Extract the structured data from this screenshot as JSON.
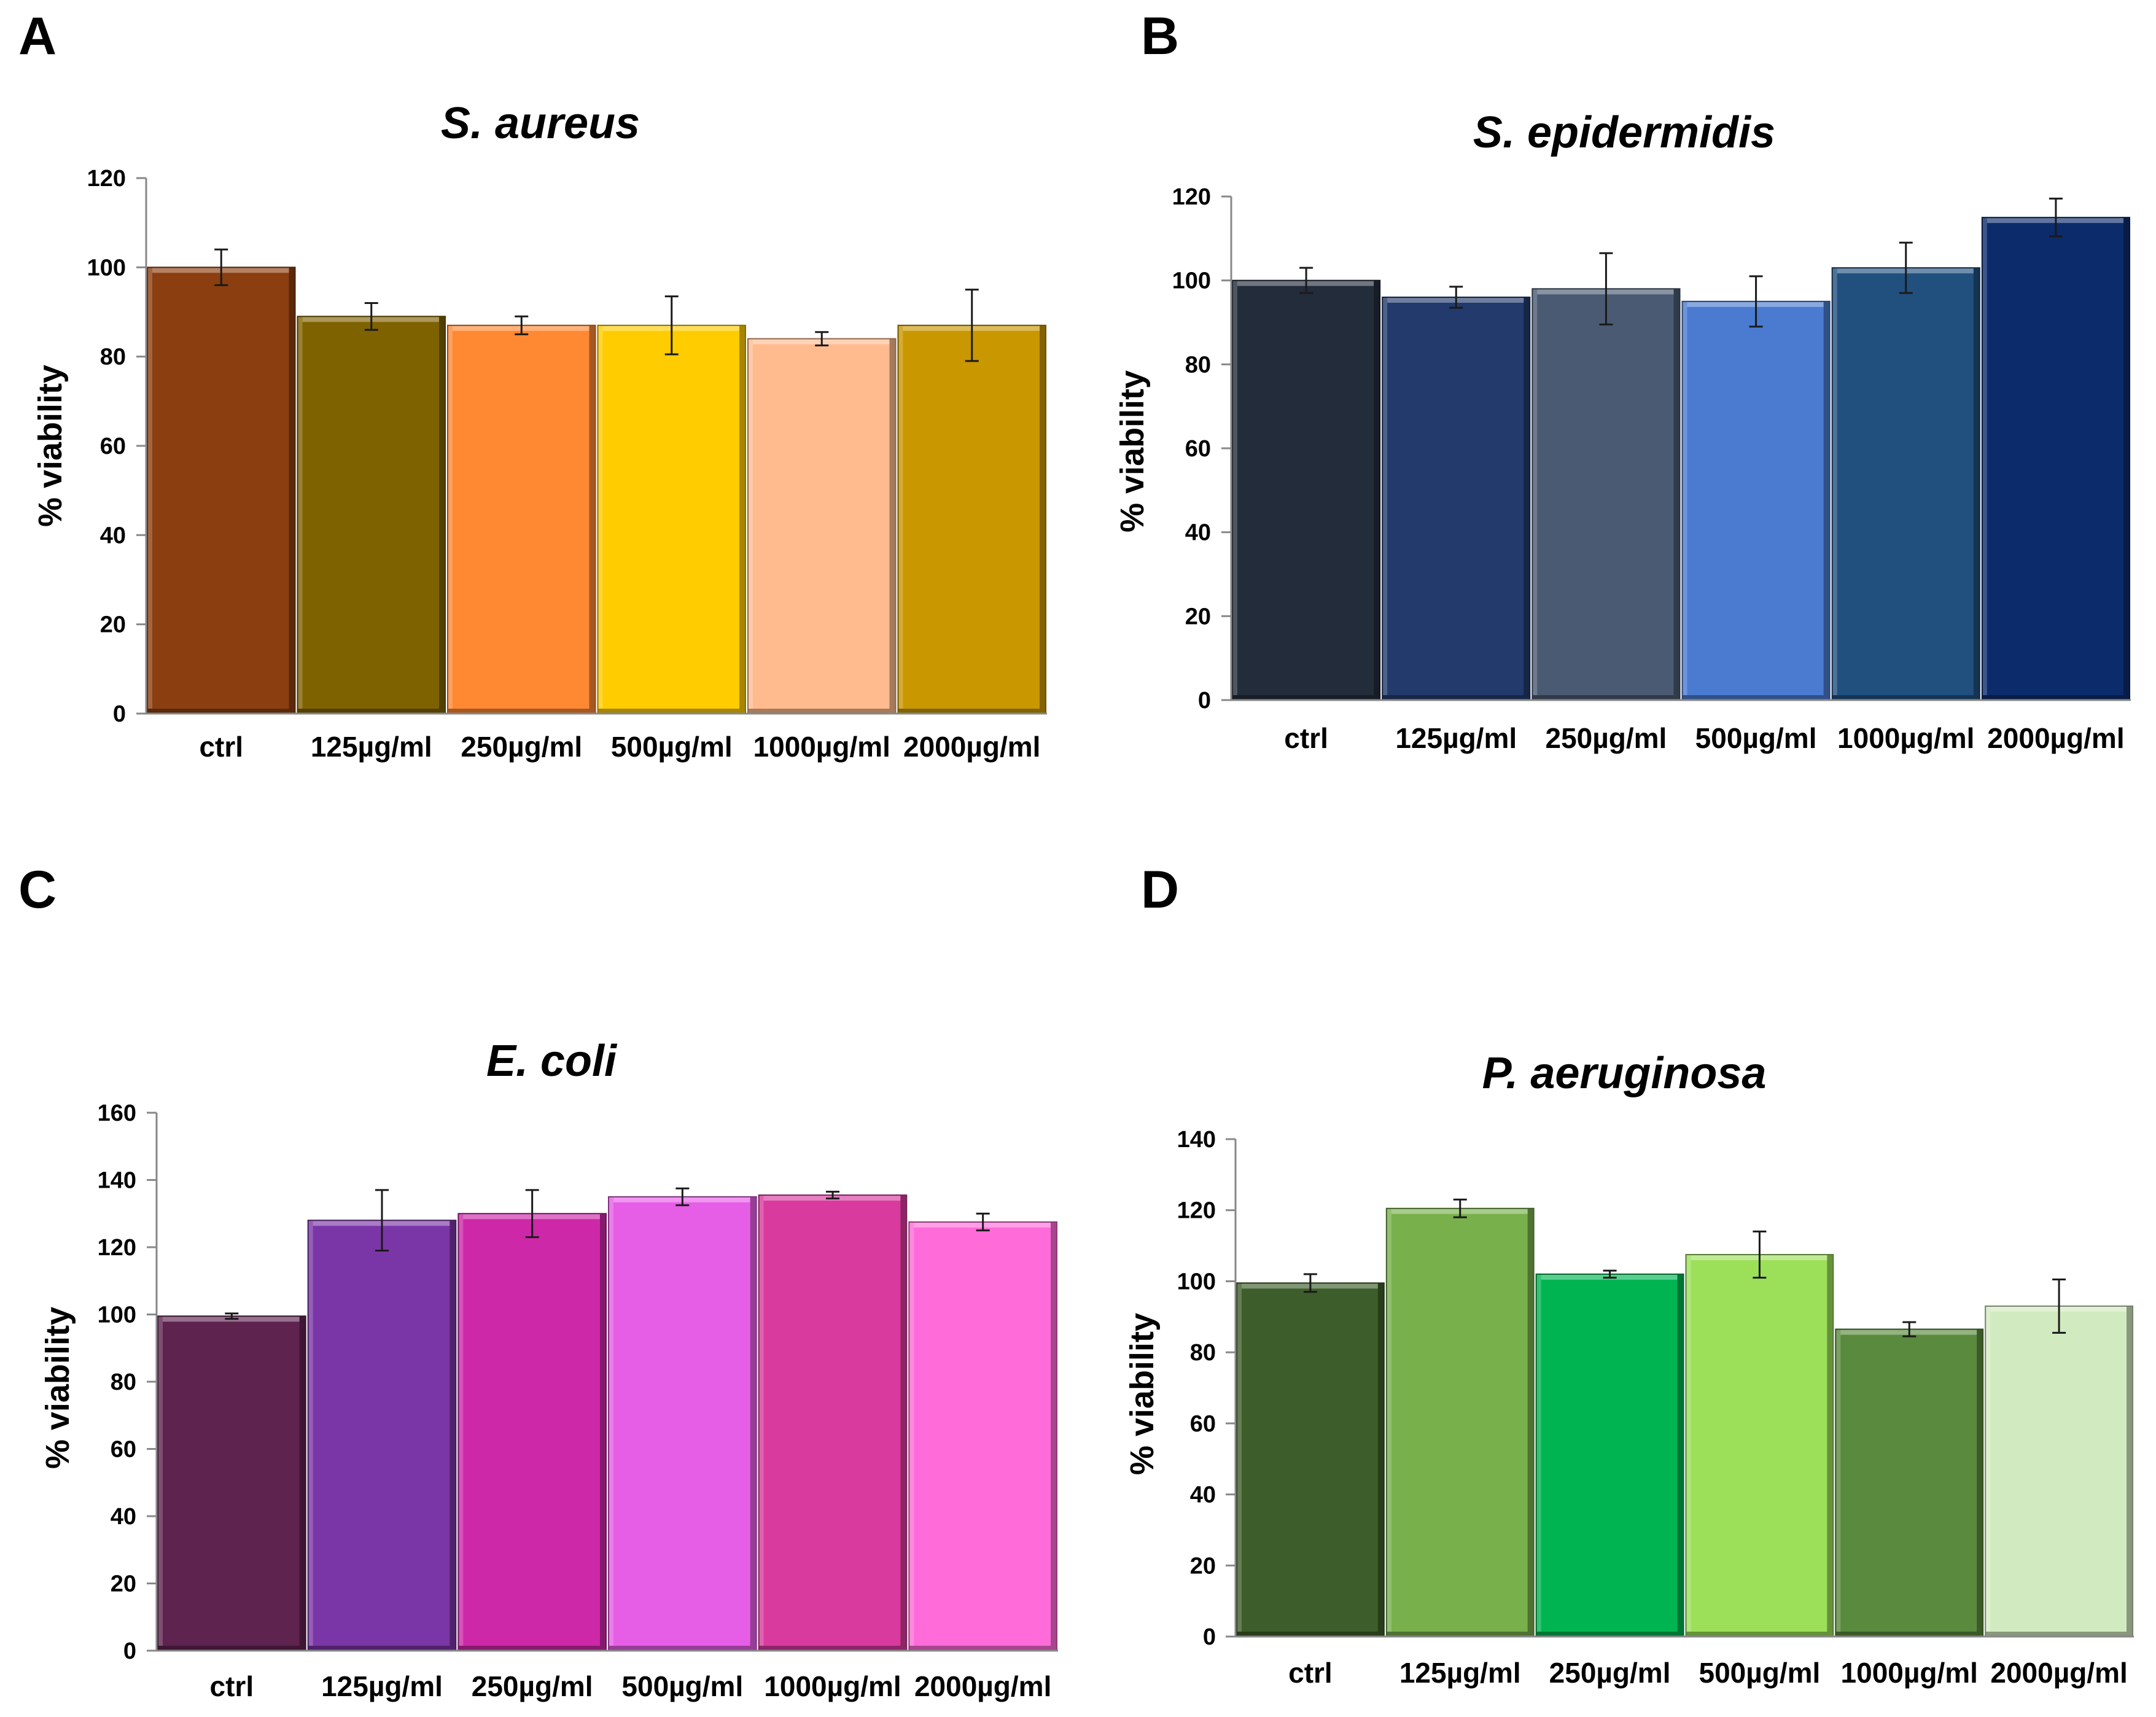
{
  "chart_data": [
    {
      "panel": "A",
      "type": "bar",
      "title": "S. aureus",
      "xlabel": "",
      "ylabel": "% viability",
      "ylim": [
        0,
        120
      ],
      "yticks": [
        0,
        20,
        40,
        60,
        80,
        100,
        120
      ],
      "categories": [
        "ctrl",
        "125µg/ml",
        "250µg/ml",
        "500µg/ml",
        "1000µg/ml",
        "2000µg/ml"
      ],
      "values": [
        100,
        89,
        87,
        87,
        84,
        87
      ],
      "errors": [
        4,
        3,
        2,
        6.5,
        1.5,
        8
      ],
      "colors": [
        "#8b3e0f",
        "#7f6200",
        "#ff8833",
        "#ffcc00",
        "#ffbb8e",
        "#c99700"
      ]
    },
    {
      "panel": "B",
      "type": "bar",
      "title": "S. epidermidis",
      "xlabel": "",
      "ylabel": "% viability",
      "ylim": [
        0,
        120
      ],
      "yticks": [
        0,
        20,
        40,
        60,
        80,
        100,
        120
      ],
      "categories": [
        "ctrl",
        "125µg/ml",
        "250µg/ml",
        "500µg/ml",
        "1000µg/ml",
        "2000µg/ml"
      ],
      "values": [
        100,
        96,
        98,
        95,
        103,
        115
      ],
      "errors": [
        3,
        2.5,
        8.5,
        6,
        6,
        4.5
      ],
      "colors": [
        "#232c3b",
        "#223a6c",
        "#4a5a72",
        "#4a7bd0",
        "#21507f",
        "#0c2b6b"
      ]
    },
    {
      "panel": "C",
      "type": "bar",
      "title": "E. coli",
      "xlabel": "",
      "ylabel": "% viability",
      "ylim": [
        0,
        160
      ],
      "yticks": [
        0,
        20,
        40,
        60,
        80,
        100,
        120,
        140,
        160
      ],
      "categories": [
        "ctrl",
        "125µg/ml",
        "250µg/ml",
        "500µg/ml",
        "1000µg/ml",
        "2000µg/ml"
      ],
      "values": [
        99.5,
        128,
        130,
        135,
        135.5,
        127.5
      ],
      "errors": [
        0.8,
        9,
        7,
        2.5,
        1,
        2.5
      ],
      "colors": [
        "#5f2350",
        "#7a36a6",
        "#cc28a8",
        "#e65ee6",
        "#d93a9e",
        "#ff6bd9"
      ]
    },
    {
      "panel": "D",
      "type": "bar",
      "title": "P. aeruginosa",
      "xlabel": "",
      "ylabel": "% viability",
      "ylim": [
        0,
        140
      ],
      "yticks": [
        0,
        20,
        40,
        60,
        80,
        100,
        120,
        140
      ],
      "categories": [
        "ctrl",
        "125µg/ml",
        "250µg/ml",
        "500µg/ml",
        "1000µg/ml",
        "2000µg/ml"
      ],
      "values": [
        99.5,
        120.5,
        102,
        107.5,
        86.5,
        93
      ],
      "errors": [
        2.5,
        2.5,
        1,
        6.5,
        2,
        7.5
      ],
      "colors": [
        "#3d5e2a",
        "#78b04c",
        "#00b551",
        "#9ce05a",
        "#5a8a3d",
        "#d2eac0"
      ]
    }
  ]
}
